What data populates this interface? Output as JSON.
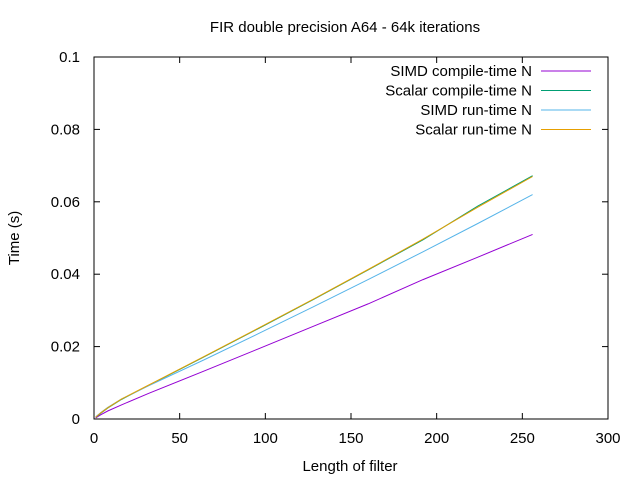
{
  "chart_data": {
    "type": "line",
    "title": "FIR double precision A64 - 64k iterations",
    "xlabel": "Length of filter",
    "ylabel": "Time (s)",
    "xlim": [
      0,
      300
    ],
    "ylim": [
      0,
      0.1
    ],
    "xticks": [
      0,
      50,
      100,
      150,
      200,
      250,
      300
    ],
    "yticks": [
      0,
      0.02,
      0.04,
      0.06,
      0.08,
      0.1
    ],
    "xtick_labels": [
      "0",
      "50",
      "100",
      "150",
      "200",
      "250",
      "300"
    ],
    "ytick_labels": [
      "0",
      "0.02",
      "0.04",
      "0.06",
      "0.08",
      "0.1"
    ],
    "grid": false,
    "legend_position": "top-right",
    "series": [
      {
        "name": "SIMD compile-time N",
        "color": "#9400d3",
        "x": [
          1,
          2,
          4,
          8,
          16,
          32,
          64,
          96,
          128,
          160,
          192,
          224,
          256
        ],
        "y": [
          0.0003,
          0.0006,
          0.0012,
          0.0022,
          0.0039,
          0.0071,
          0.0132,
          0.0194,
          0.0256,
          0.0318,
          0.0385,
          0.0447,
          0.051
        ]
      },
      {
        "name": "Scalar compile-time N",
        "color": "#009e73",
        "x": [
          1,
          2,
          4,
          8,
          16,
          32,
          64,
          96,
          128,
          160,
          192,
          224,
          256
        ],
        "y": [
          0.0005,
          0.0008,
          0.0016,
          0.003,
          0.0054,
          0.0093,
          0.0171,
          0.025,
          0.033,
          0.0412,
          0.0495,
          0.0588,
          0.0672
        ]
      },
      {
        "name": "SIMD run-time N",
        "color": "#56b4e9",
        "x": [
          1,
          2,
          4,
          8,
          16,
          32,
          64,
          96,
          128,
          160,
          192,
          224,
          256
        ],
        "y": [
          0.0006,
          0.001,
          0.0018,
          0.0032,
          0.0055,
          0.0092,
          0.0163,
          0.0236,
          0.031,
          0.0385,
          0.0462,
          0.054,
          0.062
        ]
      },
      {
        "name": "Scalar run-time N",
        "color": "#e69f00",
        "x": [
          1,
          2,
          4,
          8,
          16,
          32,
          64,
          96,
          128,
          160,
          192,
          224,
          256
        ],
        "y": [
          0.0005,
          0.0009,
          0.0017,
          0.0031,
          0.0055,
          0.0094,
          0.0172,
          0.0251,
          0.0331,
          0.0413,
          0.0497,
          0.0585,
          0.067
        ]
      }
    ]
  }
}
